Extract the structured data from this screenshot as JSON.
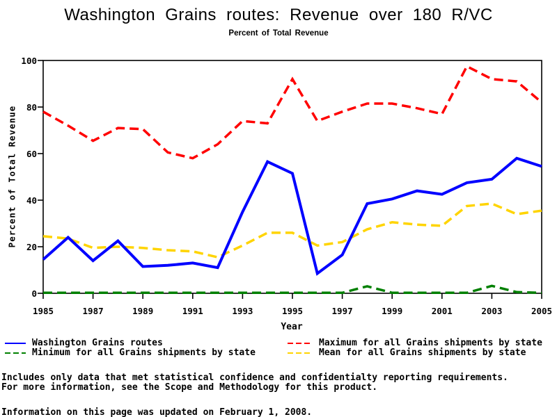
{
  "title": "Washington Grains routes: Revenue over 180 R/VC",
  "subtitle": "Percent of Total Revenue",
  "chart_data": {
    "type": "line",
    "x": [
      1985,
      1986,
      1987,
      1988,
      1989,
      1990,
      1991,
      1992,
      1993,
      1994,
      1995,
      1996,
      1997,
      1998,
      1999,
      2000,
      2001,
      2002,
      2003,
      2004,
      2005
    ],
    "series": [
      {
        "name": "Washington Grains routes",
        "color": "#0000ff",
        "style": "solid",
        "values": [
          14.5,
          24,
          14,
          22.5,
          11.5,
          12,
          13,
          11,
          35,
          56.5,
          51.5,
          8.5,
          16.5,
          38.5,
          40.5,
          44,
          42.5,
          47.5,
          49,
          58,
          54.5
        ]
      },
      {
        "name": "Maximum for all Grains shipments by state",
        "color": "#ff0000",
        "style": "dashed",
        "values": [
          78,
          72,
          65.5,
          71,
          70.5,
          60.5,
          58,
          64,
          74,
          73,
          92,
          74,
          78,
          81.5,
          81.5,
          79.5,
          77,
          97.5,
          92,
          91,
          82
        ]
      },
      {
        "name": "Minimum for all Grains shipments by state",
        "color": "#008000",
        "style": "dashed",
        "values": [
          0.2,
          0.2,
          0.2,
          0.2,
          0.2,
          0.2,
          0.2,
          0.2,
          0.2,
          0.2,
          0.2,
          0.2,
          0.2,
          3,
          0.2,
          0.2,
          0.2,
          0.2,
          3.2,
          0.5,
          0.2
        ]
      },
      {
        "name": "Mean for all Grains shipments by state",
        "color": "#ffd400",
        "style": "dashed",
        "values": [
          24.5,
          23.5,
          19.5,
          20,
          19.5,
          18.5,
          18,
          15.5,
          20.5,
          26,
          26,
          20.5,
          22,
          27.5,
          30.5,
          29.5,
          29,
          37.5,
          38.5,
          34,
          35.5
        ]
      }
    ],
    "xlabel": "Year",
    "ylabel": "Percent of Total Revenue",
    "xlim": [
      1985,
      2005
    ],
    "ylim": [
      0,
      100
    ],
    "x_ticks": [
      1985,
      1987,
      1989,
      1991,
      1993,
      1995,
      1997,
      1999,
      2001,
      2003,
      2005
    ],
    "y_ticks": [
      0,
      20,
      40,
      60,
      80,
      100
    ],
    "grid": false,
    "legend_position": "bottom"
  },
  "footer": {
    "line1": "Includes only data that met statistical confidence and confidentialty reporting requirements.",
    "line2": "For more information, see the Scope and Methodology for this product.",
    "updated": "Information on this page was updated on February 1, 2008."
  }
}
